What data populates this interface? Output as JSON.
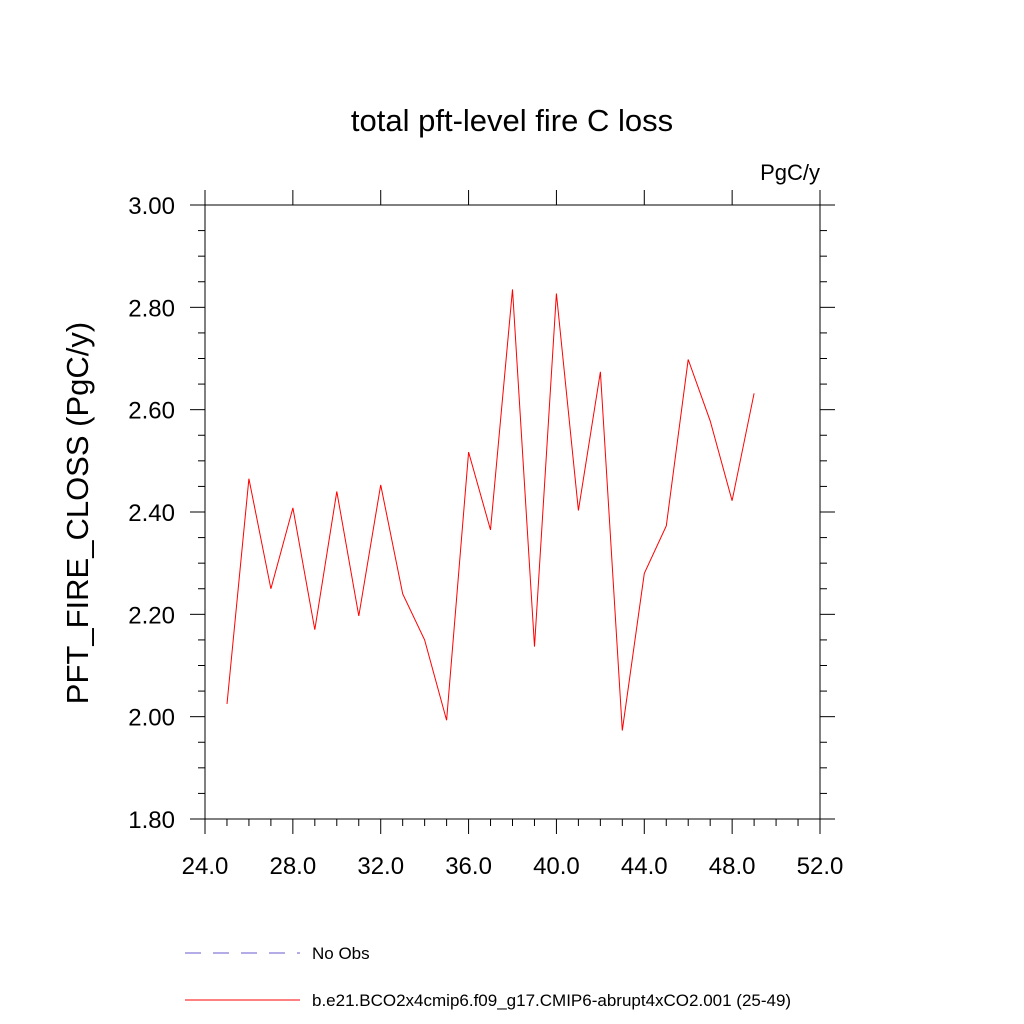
{
  "chart_data": {
    "type": "line",
    "title": "total pft-level fire C loss",
    "units": "PgC/y",
    "xlabel": "",
    "ylabel": "PFT_FIRE_CLOSS  (PgC/y)",
    "xlim": [
      24,
      52
    ],
    "ylim": [
      1.8,
      3.0
    ],
    "x_major_ticks": [
      24,
      28,
      32,
      36,
      40,
      44,
      48,
      52
    ],
    "x_tick_labels": [
      "24.0",
      "28.0",
      "32.0",
      "36.0",
      "40.0",
      "44.0",
      "48.0",
      "52.0"
    ],
    "y_major_ticks": [
      1.8,
      2.0,
      2.2,
      2.4,
      2.6,
      2.8,
      3.0
    ],
    "y_tick_labels": [
      "1.80",
      "2.00",
      "2.20",
      "2.40",
      "2.60",
      "2.80",
      "3.00"
    ],
    "grid": false,
    "legend_position": "bottom",
    "series": [
      {
        "name": "b.e21.BCO2x4cmip6.f09_g17.CMIP6-abrupt4xCO2.001 (25-49)",
        "color": "#ff0000",
        "style": "solid",
        "x": [
          25,
          26,
          27,
          28,
          29,
          30,
          31,
          32,
          33,
          34,
          35,
          36,
          37,
          38,
          39,
          40,
          41,
          42,
          43,
          44,
          45,
          46,
          47,
          48,
          49
        ],
        "values": [
          2.025,
          2.465,
          2.25,
          2.408,
          2.17,
          2.44,
          2.197,
          2.453,
          2.24,
          2.15,
          1.993,
          2.517,
          2.365,
          2.835,
          2.137,
          2.827,
          2.403,
          2.674,
          1.973,
          2.28,
          2.373,
          2.698,
          2.578,
          2.422,
          2.632
        ]
      }
    ],
    "legend": [
      {
        "label": "No Obs",
        "color": "#6a5acd",
        "style": "dashed"
      },
      {
        "label": "b.e21.BCO2x4cmip6.f09_g17.CMIP6-abrupt4xCO2.001 (25-49)",
        "color": "#ff0000",
        "style": "solid"
      }
    ]
  }
}
